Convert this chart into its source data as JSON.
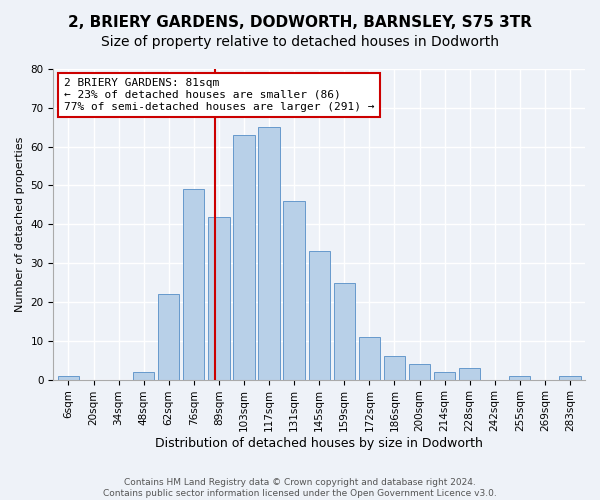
{
  "title": "2, BRIERY GARDENS, DODWORTH, BARNSLEY, S75 3TR",
  "subtitle": "Size of property relative to detached houses in Dodworth",
  "xlabel": "Distribution of detached houses by size in Dodworth",
  "ylabel": "Number of detached properties",
  "footer_lines": [
    "Contains HM Land Registry data © Crown copyright and database right 2024.",
    "Contains public sector information licensed under the Open Government Licence v3.0."
  ],
  "bar_labels": [
    "6sqm",
    "20sqm",
    "34sqm",
    "48sqm",
    "62sqm",
    "76sqm",
    "89sqm",
    "103sqm",
    "117sqm",
    "131sqm",
    "145sqm",
    "159sqm",
    "172sqm",
    "186sqm",
    "200sqm",
    "214sqm",
    "228sqm",
    "242sqm",
    "255sqm",
    "269sqm",
    "283sqm"
  ],
  "bar_values": [
    1,
    0,
    0,
    2,
    22,
    49,
    42,
    63,
    65,
    46,
    33,
    25,
    11,
    6,
    4,
    2,
    3,
    0,
    1,
    0,
    1
  ],
  "bar_color": "#b8d0e8",
  "bar_edge_color": "#6699cc",
  "vline_x_index": 5.85,
  "vline_color": "#cc0000",
  "annotation_title": "2 BRIERY GARDENS: 81sqm",
  "annotation_line1": "← 23% of detached houses are smaller (86)",
  "annotation_line2": "77% of semi-detached houses are larger (291) →",
  "annotation_box_color": "#cc0000",
  "ylim": [
    0,
    80
  ],
  "yticks": [
    0,
    10,
    20,
    30,
    40,
    50,
    60,
    70,
    80
  ],
  "bg_color": "#eef2f8",
  "plot_bg_color": "#eef2f8",
  "grid_color": "#ffffff",
  "title_fontsize": 11,
  "subtitle_fontsize": 10,
  "ylabel_fontsize": 8,
  "xlabel_fontsize": 9,
  "tick_fontsize": 7.5,
  "footer_fontsize": 6.5
}
